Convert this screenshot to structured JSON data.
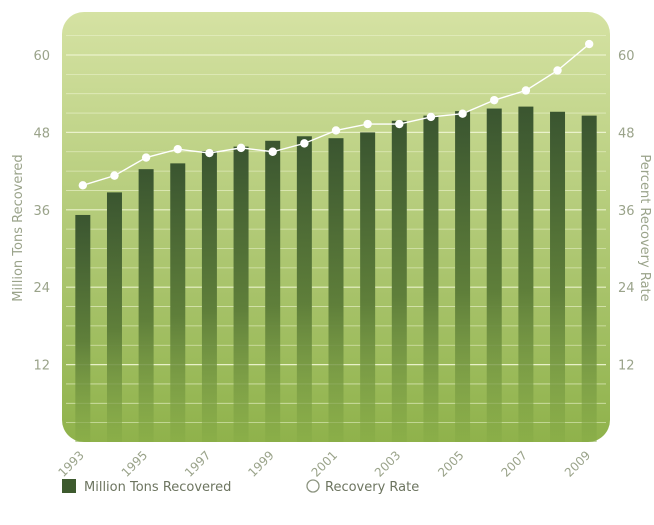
{
  "chart_data": {
    "type": "bar",
    "x": [
      "1993",
      "1994",
      "1995",
      "1996",
      "1997",
      "1998",
      "1999",
      "2000",
      "2001",
      "2002",
      "2003",
      "2004",
      "2005",
      "2006",
      "2007",
      "2008",
      "2009"
    ],
    "x_tick_labels": [
      "1993",
      "",
      "1995",
      "",
      "1997",
      "",
      "1999",
      "",
      "2001",
      "",
      "2003",
      "",
      "2005",
      "",
      "2007",
      "",
      "2009"
    ],
    "series": [
      {
        "name": "Million Tons Recovered",
        "type": "bar",
        "axis": "left",
        "color": "#3d5a2e",
        "values": [
          35.2,
          38.7,
          42.3,
          43.2,
          45.1,
          45.8,
          46.7,
          47.4,
          47.1,
          48.0,
          49.8,
          50.6,
          51.3,
          51.7,
          52.0,
          51.2,
          50.6
        ]
      },
      {
        "name": "Recovery Rate",
        "type": "line",
        "axis": "right",
        "color": "#ffffff",
        "values": [
          39.8,
          41.3,
          44.1,
          45.4,
          44.8,
          45.6,
          45.0,
          46.3,
          48.3,
          49.3,
          49.3,
          50.4,
          50.9,
          53.0,
          54.5,
          57.6,
          61.7
        ]
      }
    ],
    "ylabel_left": "Million Tons Recovered",
    "ylabel_right": "Percent Recovery Rate",
    "ylim": [
      0,
      65
    ],
    "yticks": [
      "12",
      "24",
      "36",
      "48",
      "60"
    ],
    "ytick_values": [
      12,
      24,
      36,
      48,
      60
    ],
    "grid": true,
    "legend_position": "bottom",
    "legend": [
      {
        "label": "Million Tons Recovered",
        "marker": "square"
      },
      {
        "label": "Recovery Rate",
        "marker": "circle"
      }
    ],
    "colors": {
      "panel_top": "#d5e2a3",
      "panel_bottom": "#8fb24b",
      "gridline": "#ecf3cf",
      "axis_text": "#9aa38a",
      "bar_top": "#3a5530",
      "bar_bottom": "#86ab46"
    }
  }
}
